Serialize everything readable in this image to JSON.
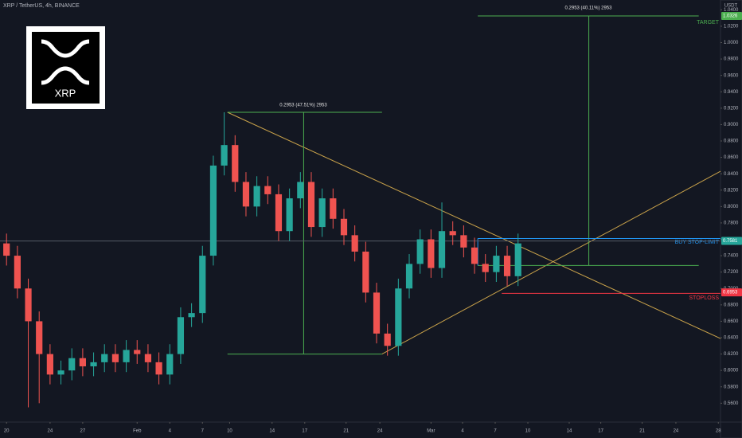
{
  "chart_data": {
    "type": "candlestick",
    "title": "XRP / TetherUS, 4h, BINANCE",
    "logo_text": "XRP",
    "currency": "USDT",
    "x": [
      20,
      21,
      22,
      23,
      24,
      25,
      26,
      27,
      28,
      29,
      30,
      31,
      32,
      33,
      34,
      35,
      36,
      37,
      38,
      39,
      40,
      41,
      42,
      43,
      44,
      45,
      46,
      47,
      48,
      49,
      50,
      51,
      52,
      53,
      54,
      55,
      56,
      57,
      58,
      59,
      60,
      61,
      62,
      63,
      64,
      65,
      66,
      67
    ],
    "open": [
      0.755,
      0.74,
      0.7,
      0.66,
      0.62,
      0.595,
      0.6,
      0.615,
      0.605,
      0.61,
      0.62,
      0.61,
      0.625,
      0.62,
      0.61,
      0.595,
      0.62,
      0.665,
      0.67,
      0.74,
      0.85,
      0.875,
      0.83,
      0.8,
      0.825,
      0.815,
      0.77,
      0.81,
      0.83,
      0.775,
      0.81,
      0.785,
      0.765,
      0.745,
      0.695,
      0.645,
      0.63,
      0.7,
      0.73,
      0.76,
      0.725,
      0.77,
      0.765,
      0.75,
      0.73,
      0.72,
      0.74,
      0.715
    ],
    "high": [
      0.767,
      0.752,
      0.712,
      0.672,
      0.632,
      0.612,
      0.627,
      0.627,
      0.622,
      0.632,
      0.632,
      0.637,
      0.637,
      0.632,
      0.622,
      0.632,
      0.677,
      0.682,
      0.752,
      0.862,
      0.915,
      0.887,
      0.842,
      0.837,
      0.837,
      0.827,
      0.822,
      0.842,
      0.842,
      0.822,
      0.822,
      0.797,
      0.777,
      0.757,
      0.707,
      0.657,
      0.712,
      0.742,
      0.772,
      0.772,
      0.805,
      0.782,
      0.777,
      0.762,
      0.742,
      0.752,
      0.752,
      0.767
    ],
    "low": [
      0.728,
      0.688,
      0.555,
      0.56,
      0.583,
      0.583,
      0.588,
      0.593,
      0.593,
      0.598,
      0.598,
      0.598,
      0.608,
      0.598,
      0.583,
      0.583,
      0.608,
      0.653,
      0.658,
      0.728,
      0.838,
      0.818,
      0.788,
      0.788,
      0.803,
      0.758,
      0.758,
      0.798,
      0.763,
      0.763,
      0.773,
      0.753,
      0.733,
      0.683,
      0.633,
      0.618,
      0.618,
      0.688,
      0.718,
      0.713,
      0.713,
      0.753,
      0.738,
      0.718,
      0.708,
      0.708,
      0.703,
      0.703
    ],
    "close": [
      0.74,
      0.7,
      0.66,
      0.62,
      0.595,
      0.6,
      0.615,
      0.605,
      0.61,
      0.62,
      0.61,
      0.625,
      0.62,
      0.61,
      0.595,
      0.62,
      0.665,
      0.67,
      0.74,
      0.85,
      0.875,
      0.83,
      0.8,
      0.825,
      0.815,
      0.77,
      0.81,
      0.83,
      0.775,
      0.81,
      0.785,
      0.765,
      0.745,
      0.695,
      0.645,
      0.63,
      0.7,
      0.73,
      0.76,
      0.725,
      0.77,
      0.765,
      0.75,
      0.73,
      0.72,
      0.74,
      0.715,
      0.755
    ],
    "up_color": "#26a69a",
    "down_color": "#ef5350",
    "xlim": [
      19.4,
      85.6
    ],
    "xticks": [
      20,
      24,
      27,
      {
        "value": 32,
        "label": "Feb"
      },
      {
        "value": 35,
        "label": "4"
      },
      {
        "value": 38,
        "label": "7"
      },
      {
        "value": 40.5,
        "label": "10"
      },
      {
        "value": 44.4,
        "label": "14"
      },
      {
        "value": 47.4,
        "label": "17"
      },
      {
        "value": 51.2,
        "label": "21"
      },
      {
        "value": 54.3,
        "label": "24"
      },
      {
        "value": 59,
        "label": "Mar"
      },
      {
        "value": 61.9,
        "label": "4"
      },
      {
        "value": 64.9,
        "label": "7"
      },
      {
        "value": 67.9,
        "label": "10"
      },
      {
        "value": 71.7,
        "label": "14"
      },
      {
        "value": 74.6,
        "label": "17"
      },
      {
        "value": 78.4,
        "label": "21"
      },
      {
        "value": 81.5,
        "label": "24"
      },
      {
        "value": 85.4,
        "label": "28"
      }
    ],
    "ylim": [
      0.537,
      1.052
    ],
    "yticks": [
      {
        "value": 0.56,
        "label": "0.5600"
      },
      {
        "value": 0.58,
        "label": "0.5800"
      },
      {
        "value": 0.6,
        "label": "0.6000"
      },
      {
        "value": 0.62,
        "label": "0.6200"
      },
      {
        "value": 0.64,
        "label": "0.6400"
      },
      {
        "value": 0.66,
        "label": "0.6600"
      },
      {
        "value": 0.68,
        "label": "0.6800"
      },
      {
        "value": 0.7,
        "label": "0.7000"
      },
      {
        "value": 0.72,
        "label": "0.7200"
      },
      {
        "value": 0.74,
        "label": "0.7400"
      },
      {
        "value": 0.76,
        "label": "0.7600"
      },
      {
        "value": 0.78,
        "label": "0.7800"
      },
      {
        "value": 0.8,
        "label": "0.8000"
      },
      {
        "value": 0.82,
        "label": "0.8200"
      },
      {
        "value": 0.84,
        "label": "0.8400"
      },
      {
        "value": 0.86,
        "label": "0.8600"
      },
      {
        "value": 0.88,
        "label": "0.8800"
      },
      {
        "value": 0.9,
        "label": "0.9000"
      },
      {
        "value": 0.92,
        "label": "0.9200"
      },
      {
        "value": 0.94,
        "label": "0.9400"
      },
      {
        "value": 0.96,
        "label": "0.9600"
      },
      {
        "value": 0.98,
        "label": "0.9800"
      },
      {
        "value": 1.0,
        "label": "1.0000"
      },
      {
        "value": 1.02,
        "label": "1.0200"
      },
      {
        "value": 1.04,
        "label": "1.0400"
      }
    ],
    "price_tags": [
      {
        "value": 1.0326,
        "label": "1.0326",
        "color": "#4caf50"
      },
      {
        "value": 0.7581,
        "label": "0.7581",
        "color": "#26a69a"
      },
      {
        "value": 0.6953,
        "label": "0.6953",
        "color": "#f23645"
      }
    ],
    "lines": [
      {
        "color": "#c9a24a",
        "x": [
          40.3,
          85.6
        ],
        "y": [
          0.915,
          0.639
        ]
      },
      {
        "color": "#c9a24a",
        "x": [
          54.5,
          85.6
        ],
        "y": [
          0.62,
          0.843
        ]
      },
      {
        "color": "#4caf50",
        "x": [
          40.3,
          54.5
        ],
        "y": [
          0.915,
          0.915
        ]
      },
      {
        "color": "#4caf50",
        "x": [
          40.3,
          54.5
        ],
        "y": [
          0.62,
          0.62
        ]
      },
      {
        "color": "#4caf50",
        "x": [
          47.3,
          47.3
        ],
        "y": [
          0.62,
          0.915
        ]
      },
      {
        "color": "#4caf50",
        "x": [
          63.3,
          83.6
        ],
        "y": [
          1.0326,
          1.0326
        ]
      },
      {
        "color": "#4caf50",
        "x": [
          73.5,
          73.5
        ],
        "y": [
          1.0326,
          0.728
        ]
      },
      {
        "color": "#4caf50",
        "x": [
          63.3,
          83.6
        ],
        "y": [
          0.728,
          0.728
        ]
      },
      {
        "color": "#2196f3",
        "x": [
          63.3,
          85.6
        ],
        "y": [
          0.761,
          0.761
        ]
      },
      {
        "color": "#2196f3",
        "x": [
          63.3,
          63.3
        ],
        "y": [
          0.761,
          0.728
        ]
      },
      {
        "color": "#f23645",
        "x": [
          65.5,
          85.6
        ],
        "y": [
          0.694,
          0.694
        ]
      },
      {
        "color": "#555b66",
        "x": [
          19.4,
          85.6
        ],
        "y": [
          0.758,
          0.758
        ]
      }
    ],
    "annotations": {
      "measure_left": "0.2953 (47.51%) 2953",
      "measure_right": "0.2953 (40.11%) 2953",
      "target": "TARGET",
      "buy": "BUY STOP-LIMIT",
      "stop": "STOPLOSS"
    }
  }
}
